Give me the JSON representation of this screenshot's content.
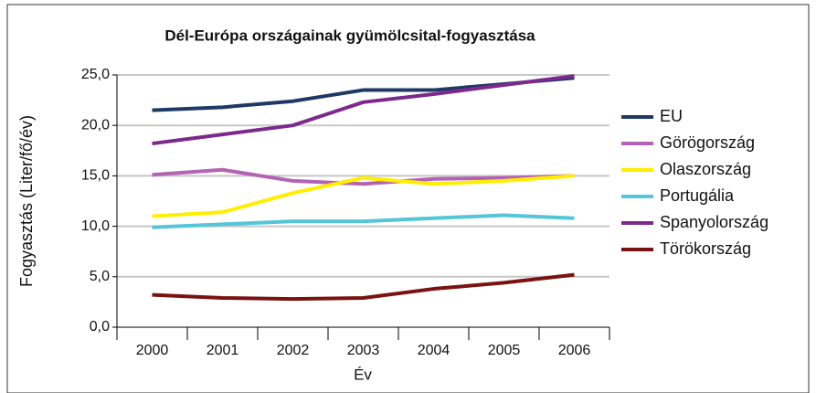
{
  "chart_data": {
    "type": "line",
    "title": "Dél-Európa országainak gyümölcsital-fogyasztása",
    "x_label": "Év",
    "y_label": "Fogyasztás (Liter/fő/év)",
    "categories": [
      "2000",
      "2001",
      "2002",
      "2003",
      "2004",
      "2005",
      "2006"
    ],
    "series": [
      {
        "name": "EU",
        "color": "#1f3864",
        "values": [
          21.5,
          21.8,
          22.4,
          23.5,
          23.5,
          24.1,
          24.7
        ]
      },
      {
        "name": "Görögország",
        "color": "#b463b4",
        "values": [
          15.1,
          15.6,
          14.5,
          14.2,
          14.7,
          14.8,
          15.0
        ]
      },
      {
        "name": "Olaszország",
        "color": "#ffee00",
        "values": [
          11.0,
          11.4,
          13.3,
          14.8,
          14.2,
          14.5,
          15.0
        ]
      },
      {
        "name": "Portugália",
        "color": "#55c5d8",
        "values": [
          9.9,
          10.2,
          10.5,
          10.5,
          10.8,
          11.1,
          10.8
        ]
      },
      {
        "name": "Spanyolország",
        "color": "#7b2a8c",
        "values": [
          18.2,
          19.1,
          20.0,
          22.3,
          23.1,
          24.0,
          24.9
        ]
      },
      {
        "name": "Törökország",
        "color": "#7b1212",
        "values": [
          3.2,
          2.9,
          2.8,
          2.9,
          3.8,
          4.4,
          5.2
        ]
      }
    ],
    "ylim": [
      0,
      25
    ],
    "yticks": [
      {
        "value": 0,
        "label": "0,0"
      },
      {
        "value": 5,
        "label": "5,0"
      },
      {
        "value": 10,
        "label": "10,0"
      },
      {
        "value": 15,
        "label": "15,0"
      },
      {
        "value": 20,
        "label": "20,0"
      },
      {
        "value": 25,
        "label": "25,0"
      }
    ],
    "grid": true,
    "legend": "right"
  }
}
